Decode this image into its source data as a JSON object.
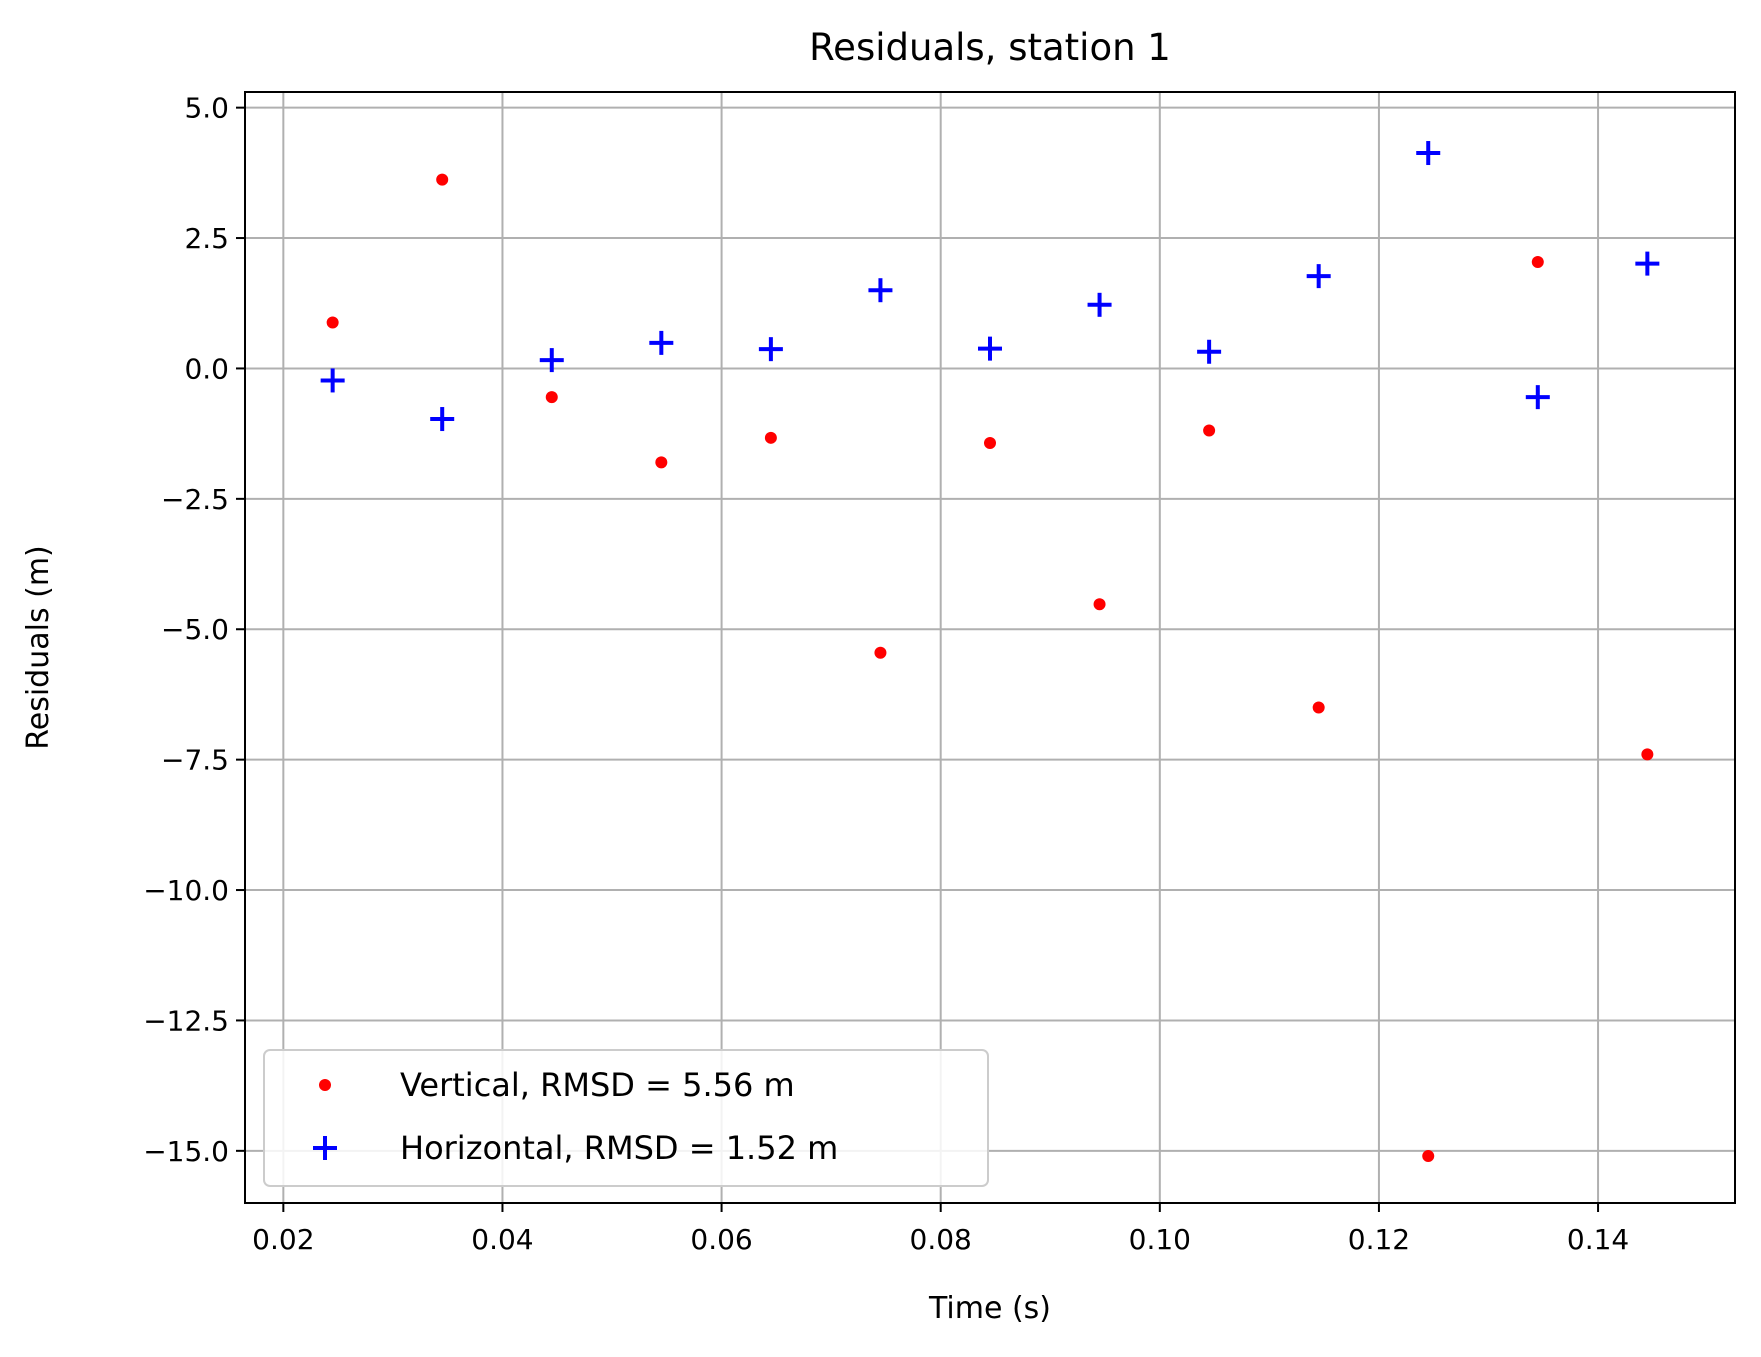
{
  "chart_data": {
    "type": "scatter",
    "title": "Residuals, station 1",
    "xlabel": "Time (s)",
    "ylabel": "Residuals (m)",
    "xlim": [
      0.0165,
      0.1525
    ],
    "ylim": [
      -16.0,
      5.3
    ],
    "x_ticks": [
      0.02,
      0.04,
      0.06,
      0.08,
      0.1,
      0.12,
      0.14
    ],
    "x_tick_labels": [
      "0.02",
      "0.04",
      "0.06",
      "0.08",
      "0.10",
      "0.12",
      "0.14"
    ],
    "y_ticks": [
      5.0,
      2.5,
      0.0,
      -2.5,
      -5.0,
      -7.5,
      -10.0,
      -12.5,
      -15.0
    ],
    "y_tick_labels": [
      "5.0",
      "2.5",
      "0.0",
      "−2.5",
      "−5.0",
      "−7.5",
      "−10.0",
      "−12.5",
      "−15.0"
    ],
    "grid": true,
    "legend_position": "lower-left",
    "x": [
      0.0245,
      0.0345,
      0.0445,
      0.0545,
      0.0645,
      0.0745,
      0.0845,
      0.0945,
      0.1045,
      0.1145,
      0.1245,
      0.1345,
      0.1445
    ],
    "series": [
      {
        "name": "Vertical, RMSD = 5.56 m",
        "marker": "dot",
        "color": "#ff0000",
        "values": [
          0.88,
          3.62,
          -0.55,
          -1.8,
          -1.33,
          -5.45,
          -1.43,
          -4.52,
          -1.19,
          -6.5,
          -15.1,
          2.04,
          -7.4
        ]
      },
      {
        "name": "Horizontal, RMSD = 1.52 m",
        "marker": "plus",
        "color": "#0000ff",
        "values": [
          -0.23,
          -0.97,
          0.16,
          0.49,
          0.37,
          1.5,
          0.38,
          1.22,
          0.32,
          1.77,
          4.13,
          -0.55,
          2.01
        ]
      }
    ]
  }
}
